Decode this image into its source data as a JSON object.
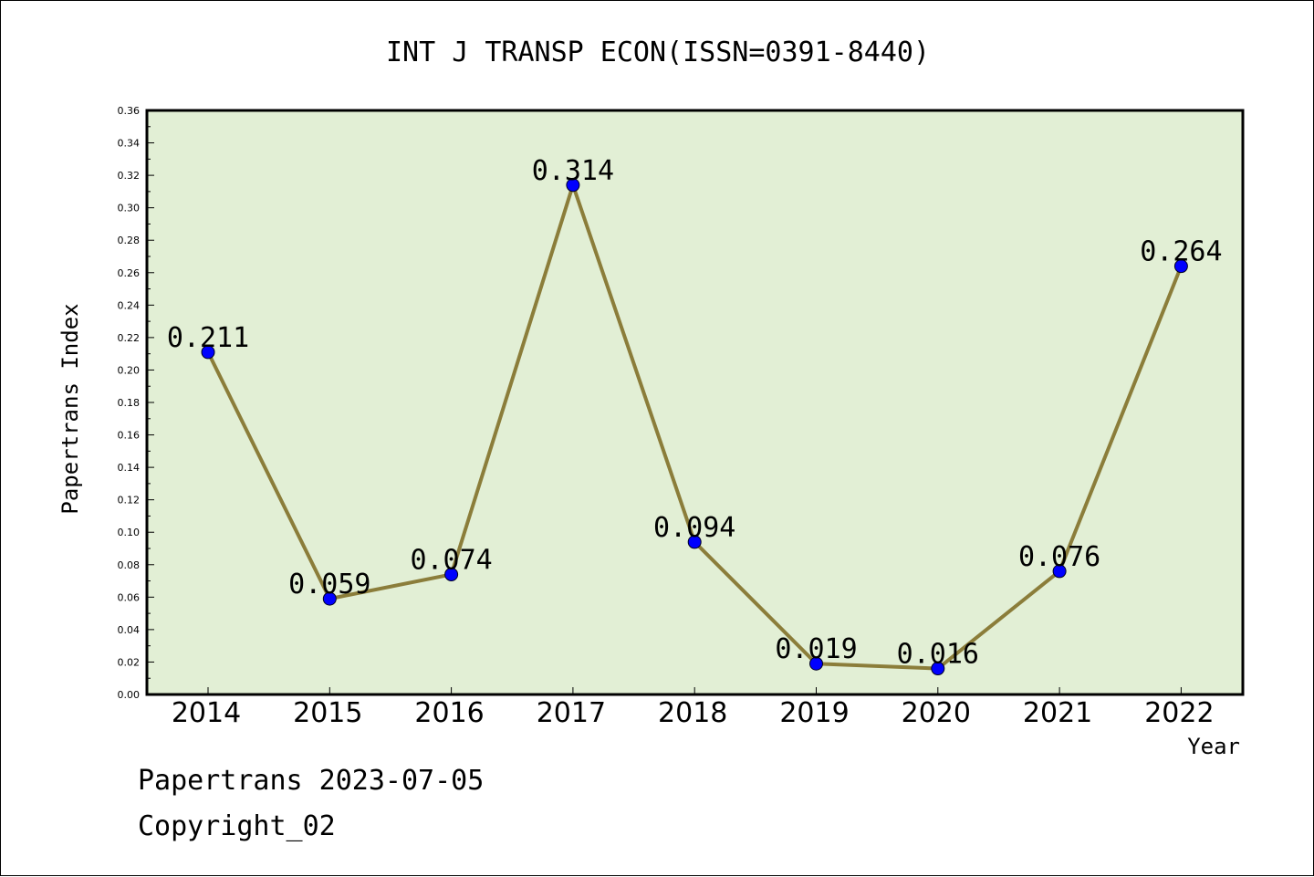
{
  "chart_data": {
    "type": "line",
    "title": "INT J TRANSP ECON(ISSN=0391-8440)",
    "xlabel": "Year",
    "ylabel": "Papertrans Index",
    "categories": [
      "2014",
      "2015",
      "2016",
      "2017",
      "2018",
      "2019",
      "2020",
      "2021",
      "2022"
    ],
    "values": [
      0.211,
      0.059,
      0.074,
      0.314,
      0.094,
      0.019,
      0.016,
      0.076,
      0.264
    ],
    "data_labels": [
      "0.211",
      "0.059",
      "0.074",
      "0.314",
      "0.094",
      "0.019",
      "0.016",
      "0.076",
      "0.264"
    ],
    "yticks": [
      "0.00",
      "0.02",
      "0.04",
      "0.06",
      "0.08",
      "0.10",
      "0.12",
      "0.14",
      "0.16",
      "0.18",
      "0.20",
      "0.22",
      "0.24",
      "0.26",
      "0.28",
      "0.30",
      "0.32",
      "0.34",
      "0.36"
    ],
    "ylim": [
      0,
      0.36
    ],
    "grid": false,
    "colors": {
      "plot_background": "#e2efd5",
      "line": "#8b7d3a",
      "marker": "#0000ff"
    }
  },
  "footer": {
    "line1": "Papertrans 2023-07-05",
    "line2": "Copyright_02"
  }
}
